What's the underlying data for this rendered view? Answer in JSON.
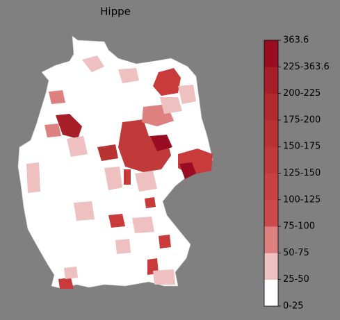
{
  "title": "Hippe",
  "colorbar": {
    "tick_labels": [
      "0-25",
      "25-50",
      "50-75",
      "75-100",
      "100-125",
      "125-150",
      "150-175",
      "175-200",
      "200-225",
      "225-363.6",
      "363.6"
    ],
    "colors": [
      "#ffffff",
      "#efc0c0",
      "#df8080",
      "#cd4a4a",
      "#c84242",
      "#c13a3a",
      "#b93232",
      "#b12a2e",
      "#a61e28",
      "#9a0c22"
    ]
  }
}
